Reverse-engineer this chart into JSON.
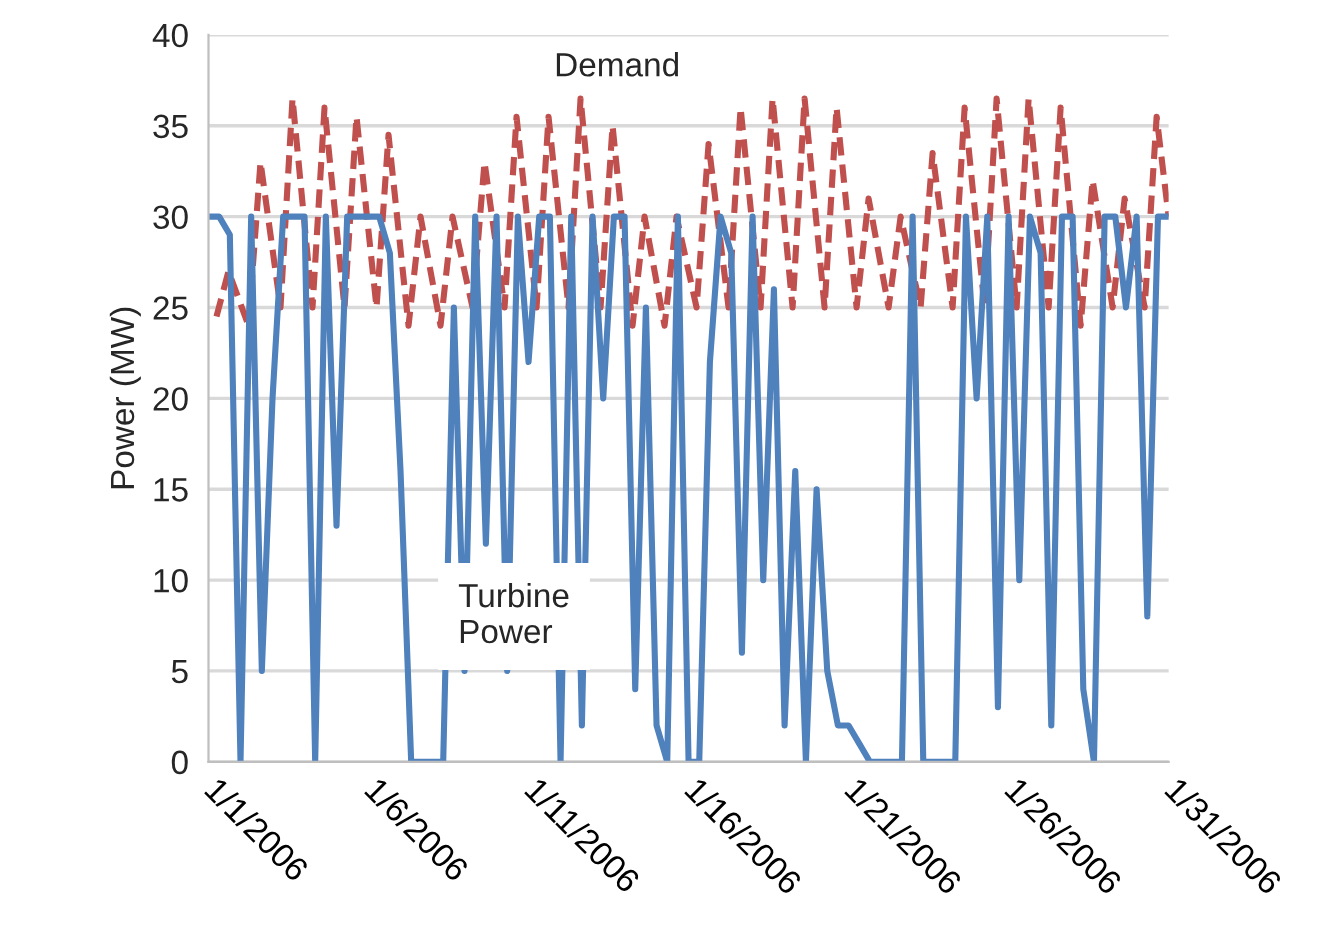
{
  "chart_data": {
    "type": "line",
    "ylabel": "Power (MW)",
    "ylim": [
      0,
      40
    ],
    "yticks": [
      0,
      5,
      10,
      15,
      20,
      25,
      30,
      35,
      40
    ],
    "xlim": [
      "2006-01-01",
      "2006-01-31"
    ],
    "xticks": [
      {
        "value": "2006-01-01",
        "label": "1/1/2006"
      },
      {
        "value": "2006-01-06",
        "label": "1/6/2006"
      },
      {
        "value": "2006-01-11",
        "label": "1/11/2006"
      },
      {
        "value": "2006-01-16",
        "label": "1/16/2006"
      },
      {
        "value": "2006-01-21",
        "label": "1/21/2006"
      },
      {
        "value": "2006-01-26",
        "label": "1/26/2006"
      },
      {
        "value": "2006-01-31",
        "label": "1/31/2006"
      }
    ],
    "grid": "y",
    "legend": false,
    "series": [
      {
        "name": "Demand",
        "color": "#c0504d",
        "line_style": "dashed",
        "x": [
          "2006-01-01T06:00",
          "2006-01-01T15:00",
          "2006-01-02T06:00",
          "2006-01-02T15:00",
          "2006-01-03T06:00",
          "2006-01-03T15:00",
          "2006-01-04T06:00",
          "2006-01-04T15:00",
          "2006-01-05T06:00",
          "2006-01-05T15:00",
          "2006-01-06T06:00",
          "2006-01-06T15:00",
          "2006-01-07T06:00",
          "2006-01-07T15:00",
          "2006-01-08T06:00",
          "2006-01-08T15:00",
          "2006-01-09T06:00",
          "2006-01-09T15:00",
          "2006-01-10T06:00",
          "2006-01-10T15:00",
          "2006-01-11T06:00",
          "2006-01-11T15:00",
          "2006-01-12T06:00",
          "2006-01-12T15:00",
          "2006-01-13T06:00",
          "2006-01-13T15:00",
          "2006-01-14T06:00",
          "2006-01-14T15:00",
          "2006-01-15T06:00",
          "2006-01-15T15:00",
          "2006-01-16T06:00",
          "2006-01-16T15:00",
          "2006-01-17T06:00",
          "2006-01-17T15:00",
          "2006-01-18T06:00",
          "2006-01-18T15:00",
          "2006-01-19T06:00",
          "2006-01-19T15:00",
          "2006-01-20T06:00",
          "2006-01-20T15:00",
          "2006-01-21T06:00",
          "2006-01-21T15:00",
          "2006-01-22T06:00",
          "2006-01-22T15:00",
          "2006-01-23T06:00",
          "2006-01-23T15:00",
          "2006-01-24T06:00",
          "2006-01-24T15:00",
          "2006-01-25T06:00",
          "2006-01-25T15:00",
          "2006-01-26T06:00",
          "2006-01-26T15:00",
          "2006-01-27T06:00",
          "2006-01-27T15:00",
          "2006-01-28T06:00",
          "2006-01-28T15:00",
          "2006-01-29T06:00",
          "2006-01-29T15:00",
          "2006-01-30T06:00",
          "2006-01-30T15:00",
          "2006-01-31T00:00"
        ],
        "values": [
          24.5,
          27,
          24,
          33,
          25,
          36.5,
          25,
          36,
          25,
          35.5,
          25,
          34.5,
          24,
          30,
          24,
          30,
          25,
          33,
          25,
          35.5,
          25,
          35.5,
          25,
          36.5,
          25,
          35,
          24,
          30,
          24,
          30,
          25,
          34,
          25,
          36,
          25,
          36.5,
          25,
          36.5,
          25,
          36,
          25,
          31,
          25,
          30,
          25,
          33.5,
          25,
          36,
          25,
          36.5,
          25,
          36.5,
          25,
          36,
          24,
          32,
          25,
          31,
          25,
          35.5,
          30
        ]
      },
      {
        "name": "Turbine Power",
        "color": "#4f81bd",
        "line_style": "solid",
        "x": [
          "2006-01-01T00:00",
          "2006-01-01T08:00",
          "2006-01-01T16:00",
          "2006-01-02T00:00",
          "2006-01-02T08:00",
          "2006-01-02T16:00",
          "2006-01-03T00:00",
          "2006-01-03T08:00",
          "2006-01-03T16:00",
          "2006-01-04T00:00",
          "2006-01-04T08:00",
          "2006-01-04T16:00",
          "2006-01-05T00:00",
          "2006-01-05T08:00",
          "2006-01-05T16:00",
          "2006-01-06T00:00",
          "2006-01-06T08:00",
          "2006-01-06T16:00",
          "2006-01-07T00:00",
          "2006-01-07T08:00",
          "2006-01-07T16:00",
          "2006-01-08T00:00",
          "2006-01-08T08:00",
          "2006-01-08T16:00",
          "2006-01-09T00:00",
          "2006-01-09T08:00",
          "2006-01-09T16:00",
          "2006-01-10T00:00",
          "2006-01-10T08:00",
          "2006-01-10T16:00",
          "2006-01-11T00:00",
          "2006-01-11T08:00",
          "2006-01-11T16:00",
          "2006-01-12T00:00",
          "2006-01-12T08:00",
          "2006-01-12T16:00",
          "2006-01-13T00:00",
          "2006-01-13T08:00",
          "2006-01-13T16:00",
          "2006-01-14T00:00",
          "2006-01-14T08:00",
          "2006-01-14T16:00",
          "2006-01-15T00:00",
          "2006-01-15T08:00",
          "2006-01-15T16:00",
          "2006-01-16T00:00",
          "2006-01-16T08:00",
          "2006-01-16T16:00",
          "2006-01-17T00:00",
          "2006-01-17T08:00",
          "2006-01-17T16:00",
          "2006-01-18T00:00",
          "2006-01-18T08:00",
          "2006-01-18T16:00",
          "2006-01-19T00:00",
          "2006-01-19T08:00",
          "2006-01-19T16:00",
          "2006-01-20T00:00",
          "2006-01-20T08:00",
          "2006-01-20T16:00",
          "2006-01-21T00:00",
          "2006-01-21T08:00",
          "2006-01-21T16:00",
          "2006-01-22T00:00",
          "2006-01-22T08:00",
          "2006-01-22T16:00",
          "2006-01-23T00:00",
          "2006-01-23T08:00",
          "2006-01-23T16:00",
          "2006-01-24T00:00",
          "2006-01-24T08:00",
          "2006-01-24T16:00",
          "2006-01-25T00:00",
          "2006-01-25T08:00",
          "2006-01-25T16:00",
          "2006-01-26T00:00",
          "2006-01-26T08:00",
          "2006-01-26T16:00",
          "2006-01-27T00:00",
          "2006-01-27T08:00",
          "2006-01-27T16:00",
          "2006-01-28T00:00",
          "2006-01-28T08:00",
          "2006-01-28T16:00",
          "2006-01-29T00:00",
          "2006-01-29T08:00",
          "2006-01-29T16:00",
          "2006-01-30T00:00",
          "2006-01-30T08:00",
          "2006-01-30T16:00",
          "2006-01-31T00:00"
        ],
        "values": [
          30,
          30,
          29,
          0,
          30,
          5,
          20,
          30,
          30,
          30,
          0,
          30,
          13,
          30,
          30,
          30,
          30,
          28,
          16,
          0,
          0,
          0,
          0,
          25,
          5,
          30,
          12,
          30,
          5,
          30,
          22,
          30,
          30,
          0,
          30,
          2,
          30,
          20,
          30,
          30,
          4,
          25,
          2,
          0,
          30,
          0,
          0,
          22,
          30,
          28,
          6,
          30,
          10,
          26,
          2,
          16,
          0,
          15,
          5,
          2,
          2,
          1,
          0,
          0,
          0,
          0,
          30,
          0,
          0,
          0,
          0,
          30,
          20,
          30,
          3,
          30,
          10,
          30,
          28,
          2,
          30,
          30,
          4,
          0,
          30,
          30,
          25,
          30,
          8,
          30,
          30
        ]
      }
    ]
  }
}
